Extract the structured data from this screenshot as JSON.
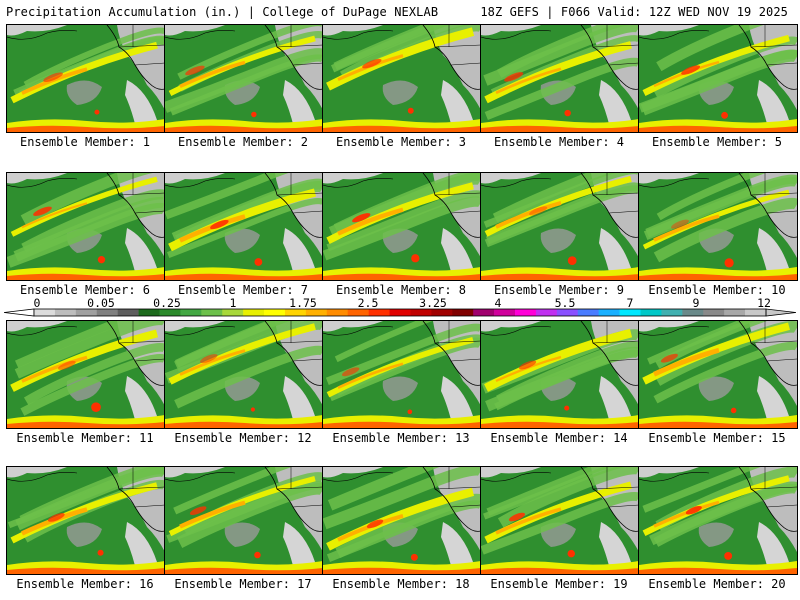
{
  "header": {
    "title": "Precipitation Accumulation (in.) | College of DuPage NEXLAB",
    "run_info": "18Z GEFS | F066 Valid: 12Z WED NOV 19 2025"
  },
  "members": [
    {
      "label": "Ensemble Member: 1"
    },
    {
      "label": "Ensemble Member: 2"
    },
    {
      "label": "Ensemble Member: 3"
    },
    {
      "label": "Ensemble Member: 4"
    },
    {
      "label": "Ensemble Member: 5"
    },
    {
      "label": "Ensemble Member: 6"
    },
    {
      "label": "Ensemble Member: 7"
    },
    {
      "label": "Ensemble Member: 8"
    },
    {
      "label": "Ensemble Member: 9"
    },
    {
      "label": "Ensemble Member: 10"
    },
    {
      "label": "Ensemble Member: 11"
    },
    {
      "label": "Ensemble Member: 12"
    },
    {
      "label": "Ensemble Member: 13"
    },
    {
      "label": "Ensemble Member: 14"
    },
    {
      "label": "Ensemble Member: 15"
    },
    {
      "label": "Ensemble Member: 16"
    },
    {
      "label": "Ensemble Member: 17"
    },
    {
      "label": "Ensemble Member: 18"
    },
    {
      "label": "Ensemble Member: 19"
    },
    {
      "label": "Ensemble Member: 20"
    }
  ],
  "colorbar": {
    "labels": [
      "0",
      "0.05",
      "0.25",
      "1",
      "1.75",
      "2.5",
      "3.25",
      "4",
      "5.5",
      "7",
      "9",
      "12"
    ],
    "colors": [
      "#dcdcdc",
      "#bdbdbd",
      "#a0a0a0",
      "#808080",
      "#5e5e5e",
      "#1c6a1c",
      "#2b8a2b",
      "#43a843",
      "#6cc04a",
      "#a8d83a",
      "#e8f000",
      "#ffff00",
      "#ffd400",
      "#ffb000",
      "#ff8c00",
      "#ff6400",
      "#ff3000",
      "#e00000",
      "#c00000",
      "#a00000",
      "#800000",
      "#a0006e",
      "#d0009c",
      "#ff00d8",
      "#c030f0",
      "#8a50ff",
      "#4a7cff",
      "#1ab0ff",
      "#00e8ff",
      "#00c8c8",
      "#40b0b0",
      "#6a8a8a",
      "#8a8a8a",
      "#a8a8a8",
      "#c8c8c8"
    ]
  }
}
